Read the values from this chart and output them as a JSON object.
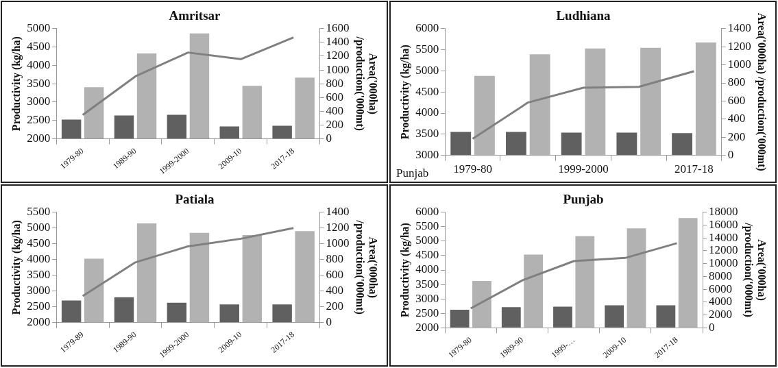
{
  "chart_data": [
    {
      "type": "bar",
      "title": "Amritsar",
      "ylabel": "Productivity (kg/ha)",
      "y2label": "Area('000ha)\n/production('000mt)",
      "categories": [
        "1979-80",
        "1989-90",
        "1999-2000",
        "2009-10",
        "2017-18"
      ],
      "series": [
        {
          "axis": "y2",
          "color": "#606060",
          "values": [
            280,
            340,
            350,
            180,
            190
          ]
        },
        {
          "axis": "y2",
          "color": "#b2b2b2",
          "values": [
            750,
            1240,
            1530,
            770,
            890
          ]
        },
        {
          "type": "line",
          "axis": "y",
          "color": "#808080",
          "values": [
            2650,
            3700,
            4350,
            4170,
            4760
          ]
        }
      ],
      "ylim": [
        2000,
        5000
      ],
      "yticks": [
        2000,
        2500,
        3000,
        3500,
        4000,
        4500,
        5000
      ],
      "y2lim": [
        0,
        1600
      ],
      "y2ticks": [
        0,
        200,
        400,
        600,
        800,
        1000,
        1200,
        1400,
        1600
      ]
    },
    {
      "type": "bar",
      "title": "Ludhiana",
      "ylabel": "Productivity (kg/ha)",
      "y2label": "Area('000ha) /production('000mt)",
      "categories": [
        "1979-80",
        null,
        "1999-2000",
        null,
        "2017-18"
      ],
      "series": [
        {
          "axis": "y2",
          "color": "#606060",
          "values": [
            258,
            258,
            251,
            251,
            245
          ]
        },
        {
          "axis": "y2",
          "color": "#b2b2b2",
          "values": [
            878,
            1116,
            1181,
            1188,
            1247
          ]
        },
        {
          "type": "line",
          "axis": "y",
          "color": "#808080",
          "values": [
            3390,
            4250,
            4600,
            4620,
            4990
          ]
        }
      ],
      "ylim": [
        3000,
        6000
      ],
      "yticks": [
        3000,
        3500,
        4000,
        4500,
        5000,
        5500,
        6000
      ],
      "y2lim": [
        0,
        1400
      ],
      "y2ticks": [
        0,
        200,
        400,
        600,
        800,
        1000,
        1200,
        1400
      ],
      "annotations": [
        "Punjab"
      ]
    },
    {
      "type": "bar",
      "title": "Patiala",
      "ylabel": "Productivity (kg/ha)",
      "y2label": "Area('000ha)\n/production('000mt)",
      "categories": [
        "1979-89",
        "1989-90",
        "1999-2000",
        "2009-10",
        "2017-18"
      ],
      "series": [
        {
          "axis": "y2",
          "color": "#606060",
          "values": [
            280,
            320,
            250,
            230,
            230
          ]
        },
        {
          "axis": "y2",
          "color": "#b2b2b2",
          "values": [
            810,
            1260,
            1140,
            1110,
            1160
          ]
        },
        {
          "type": "line",
          "axis": "y",
          "color": "#808080",
          "values": [
            2840,
            3910,
            4420,
            4660,
            5000
          ]
        }
      ],
      "ylim": [
        2000,
        5500
      ],
      "yticks": [
        2000,
        2500,
        3000,
        3500,
        4000,
        4500,
        5000,
        5500
      ],
      "y2lim": [
        0,
        1400
      ],
      "y2ticks": [
        0,
        200,
        400,
        600,
        800,
        1000,
        1200,
        1400
      ]
    },
    {
      "type": "bar",
      "title": "Punjab",
      "ylabel": "Productivity (kg/ha)",
      "y2label": "Area('000ha)\n/production('000mt)",
      "categories": [
        "1979-80",
        "1989-90",
        "1999-…",
        "2009-10",
        "2017-18"
      ],
      "series": [
        {
          "axis": "y2",
          "color": "#606060",
          "values": [
            2800,
            3200,
            3300,
            3500,
            3500
          ]
        },
        {
          "axis": "y2",
          "color": "#b2b2b2",
          "values": [
            7300,
            11400,
            14300,
            15500,
            17100
          ]
        },
        {
          "type": "line",
          "axis": "y",
          "color": "#808080",
          "values": [
            2670,
            3640,
            4310,
            4420,
            4930
          ]
        }
      ],
      "ylim": [
        2000,
        6000
      ],
      "yticks": [
        2000,
        2500,
        3000,
        3500,
        4000,
        4500,
        5000,
        5500,
        6000
      ],
      "y2lim": [
        0,
        18000
      ],
      "y2ticks": [
        0,
        2000,
        4000,
        6000,
        8000,
        10000,
        12000,
        14000,
        16000,
        18000
      ]
    }
  ]
}
